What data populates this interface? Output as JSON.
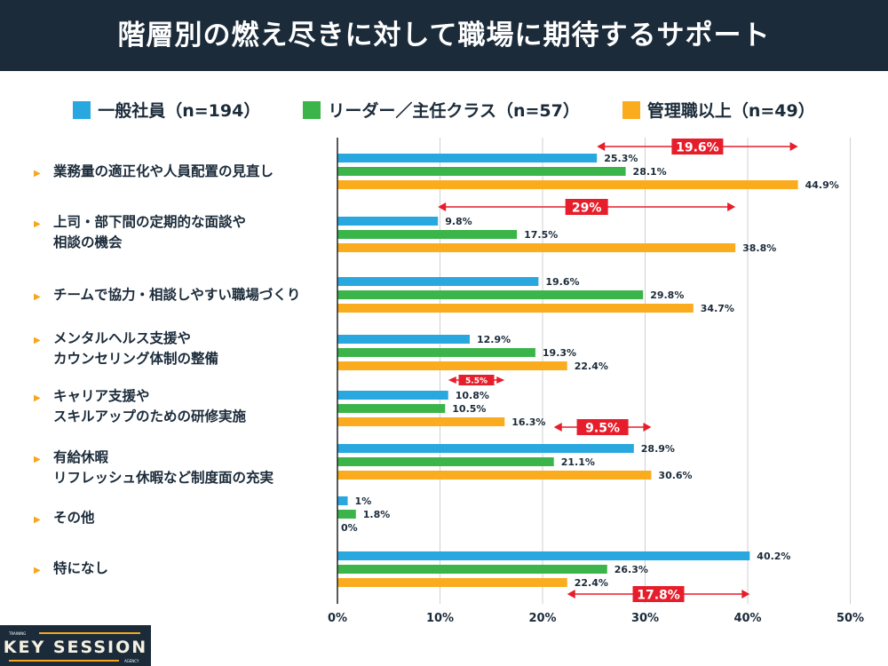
{
  "title": "階層別の燃え尽きに対して職場に期待するサポート",
  "chart_data": {
    "type": "bar",
    "orientation": "horizontal",
    "categories": [
      "業務量の適正化や人員配置の見直し",
      "上司・部下間の定期的な面談や\n相談の機会",
      "チームで協力・相談しやすい職場づくり",
      "メンタルヘルス支援や\nカウンセリング体制の整備",
      "キャリア支援や\nスキルアップのための研修実施",
      "有給休暇\nリフレッシュ休暇など制度面の充実",
      "その他",
      "特になし"
    ],
    "series": [
      {
        "name": "一般社員（n=194）",
        "color": "#29a8e0",
        "values": [
          25.3,
          9.8,
          19.6,
          12.9,
          10.8,
          28.9,
          1,
          40.2
        ],
        "labels": [
          "25.3%",
          "9.8%",
          "19.6%",
          "12.9%",
          "10.8%",
          "28.9%",
          "1%",
          "40.2%"
        ]
      },
      {
        "name": "リーダー／主任クラス（n=57）",
        "color": "#3bb54a",
        "values": [
          28.1,
          17.5,
          29.8,
          19.3,
          10.5,
          21.1,
          1.8,
          26.3
        ],
        "labels": [
          "28.1%",
          "17.5%",
          "29.8%",
          "19.3%",
          "10.5%",
          "21.1%",
          "1.8%",
          "26.3%"
        ]
      },
      {
        "name": "管理職以上（n=49）",
        "color": "#fbab1e",
        "values": [
          44.9,
          38.8,
          34.7,
          22.4,
          16.3,
          30.6,
          0,
          22.4
        ],
        "labels": [
          "44.9%",
          "38.8%",
          "34.7%",
          "22.4%",
          "16.3%",
          "30.6%",
          "0%",
          "22.4%"
        ]
      }
    ],
    "xlim": [
      0,
      50
    ],
    "xticks": [
      "0%",
      "10%",
      "20%",
      "30%",
      "40%",
      "50%"
    ],
    "grid": true,
    "legend_position": "top",
    "annotations": [
      {
        "label": "19.6%",
        "from": 25.3,
        "to": 44.9,
        "category": 0
      },
      {
        "label": "29%",
        "from": 9.8,
        "to": 38.8,
        "category": 1
      },
      {
        "label": "5.5%",
        "from": 10.8,
        "to": 16.3,
        "category": 4
      },
      {
        "label": "9.5%",
        "from": 21.1,
        "to": 30.6,
        "category": 4
      },
      {
        "label": "17.8%",
        "from": 22.4,
        "to": 40.2,
        "category": 7
      }
    ],
    "annotation_color": "#e61e2b"
  },
  "logo": {
    "top": "TRAINING",
    "main": "KEY SESSION",
    "bottom": "AGENCY"
  }
}
